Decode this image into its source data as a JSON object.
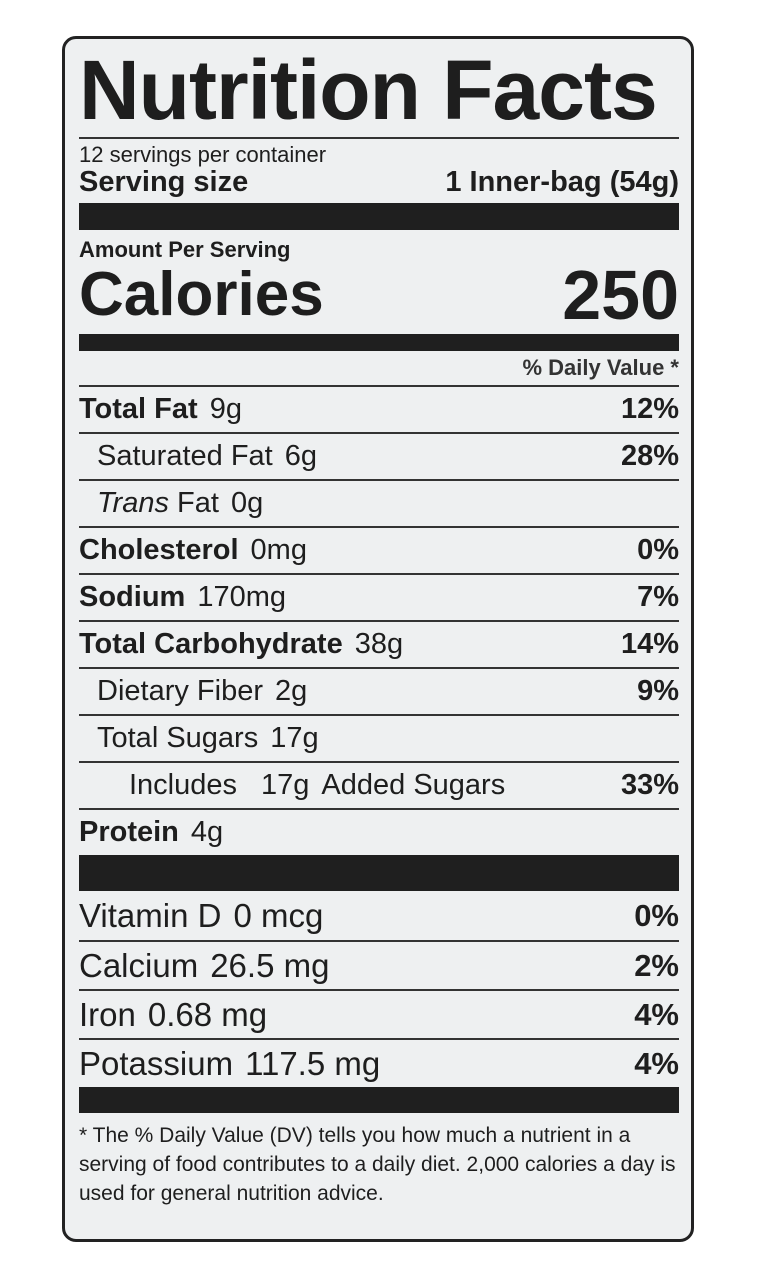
{
  "title": "Nutrition Facts",
  "servings_per_container": "12 servings per container",
  "serving_size": {
    "label": "Serving size",
    "value": "1 Inner-bag (54g)"
  },
  "amount_per_serving": "Amount Per Serving",
  "calories": {
    "label": "Calories",
    "value": "250"
  },
  "daily_value_header": "% Daily Value *",
  "nutrients": [
    {
      "name": "Total Fat",
      "amount": "9g",
      "dv": "12%"
    },
    {
      "name": "Saturated Fat",
      "amount": "6g",
      "dv": "28%"
    },
    {
      "name": "Trans",
      "name_suffix": "Fat",
      "amount": "0g",
      "dv": ""
    },
    {
      "name": "Cholesterol",
      "amount": "0mg",
      "dv": "0%"
    },
    {
      "name": "Sodium",
      "amount": "170mg",
      "dv": "7%"
    },
    {
      "name": "Total Carbohydrate",
      "amount": "38g",
      "dv": "14%"
    },
    {
      "name": "Dietary Fiber",
      "amount": "2g",
      "dv": "9%"
    },
    {
      "name": "Total Sugars",
      "amount": "17g",
      "dv": ""
    },
    {
      "name": "Includes",
      "amount": "17g",
      "name_suffix": "Added Sugars",
      "dv": "33%"
    },
    {
      "name": "Protein",
      "amount": "4g",
      "dv": ""
    }
  ],
  "vitamins": [
    {
      "name": "Vitamin D",
      "amount": "0 mcg",
      "dv": "0%"
    },
    {
      "name": "Calcium",
      "amount": "26.5 mg",
      "dv": "2%"
    },
    {
      "name": "Iron",
      "amount": "0.68 mg",
      "dv": "4%"
    },
    {
      "name": "Potassium",
      "amount": "117.5 mg",
      "dv": "4%"
    }
  ],
  "footnote": "* The % Daily Value (DV) tells you how much a nutrient in a serving of food contributes to a daily diet. 2,000 calories a day is used for general nutrition advice."
}
